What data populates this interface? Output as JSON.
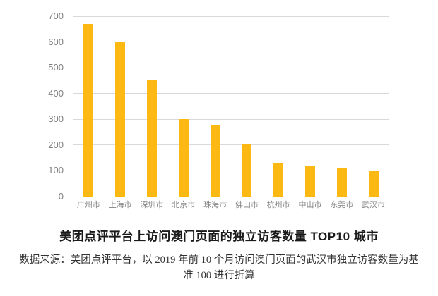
{
  "chart_data": {
    "type": "bar",
    "categories": [
      "广州市",
      "上海市",
      "深圳市",
      "北京市",
      "珠海市",
      "佛山市",
      "杭州市",
      "中山市",
      "东莞市",
      "武汉市"
    ],
    "values": [
      670,
      600,
      450,
      300,
      280,
      205,
      130,
      120,
      110,
      100
    ],
    "title": "美团点评平台上访问澳门页面的独立访客数量 TOP10 城市",
    "xlabel": "",
    "ylabel": "",
    "ylim": [
      0,
      700
    ],
    "ytick_interval": 100,
    "yticks": [
      700,
      600,
      500,
      400,
      300,
      200,
      100,
      0
    ],
    "grid": true,
    "legend": false
  },
  "title": "美团点评平台上访问澳门页面的独立访客数量 TOP10 城市",
  "source_note": {
    "line1": "数据来源：美团点评平台，以 2019 年前 10 个月访问澳门页面的武汉市独立访客数量为基",
    "line2": "准 100 进行折算"
  },
  "colors": {
    "bar": "#FDB913",
    "gridline": "#D9D9D9",
    "axis_label": "#7F7F7F",
    "title_text": "#1A1A1A",
    "source_text": "#333333"
  }
}
